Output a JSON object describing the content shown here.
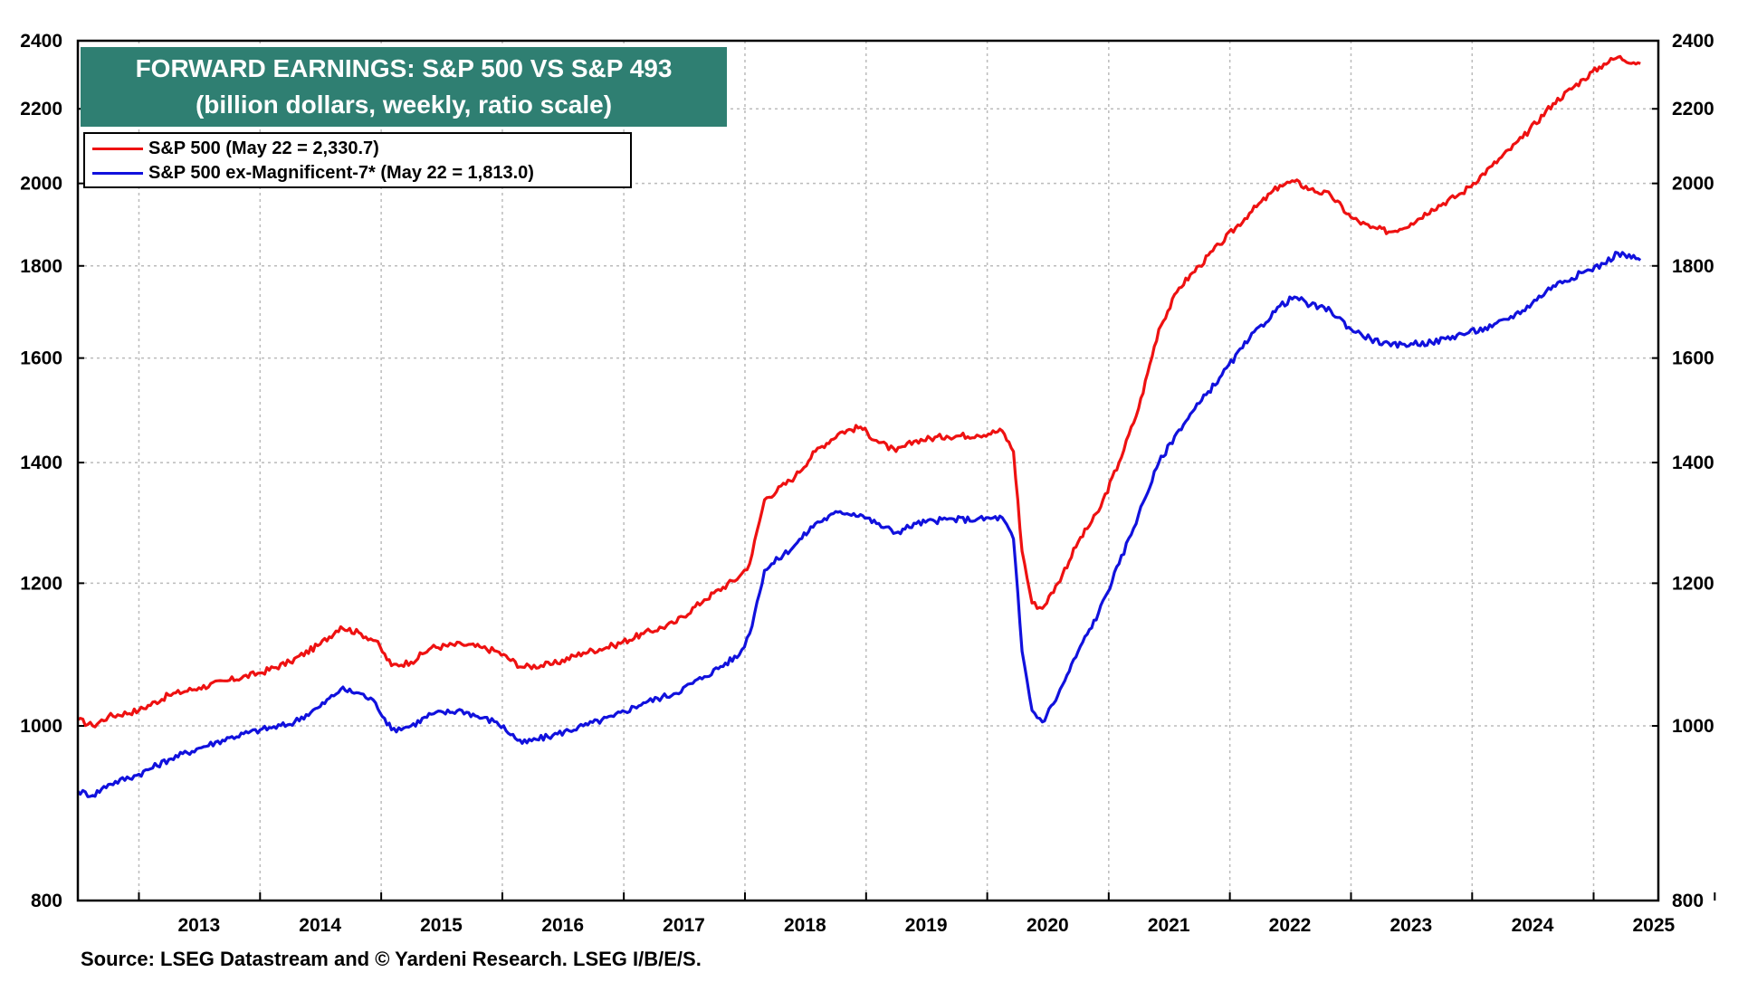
{
  "title": {
    "line1": "FORWARD EARNINGS: S&P 500 VS S&P 493",
    "line2": "(billion dollars, weekly, ratio scale)"
  },
  "legend": {
    "items": [
      {
        "label": "S&P 500 (May 22 = 2,330.7)",
        "color": "#ee1111"
      },
      {
        "label": "S&P 500 ex-Magnificent-7* (May 22 = 1,813.0)",
        "color": "#1111dd"
      }
    ]
  },
  "source": "Source: LSEG Datastream and © Yardeni Research. LSEG I/B/E/S.",
  "colors": {
    "title_bg": "#2f7f72",
    "grid": "#bbbbbb",
    "axis": "#000000"
  },
  "chart_data": {
    "type": "line",
    "y_scale": "log",
    "ylim": [
      800,
      2400
    ],
    "yticks": [
      800,
      1000,
      1200,
      1400,
      1600,
      1800,
      2000,
      2200,
      2400
    ],
    "xlim": [
      "2012-07-01",
      "2025-07-15"
    ],
    "xticks": [
      "2013",
      "2014",
      "2015",
      "2016",
      "2017",
      "2018",
      "2019",
      "2020",
      "2021",
      "2022",
      "2023",
      "2024",
      "2025"
    ],
    "grid": true,
    "legend_position": "top-left",
    "series": [
      {
        "name": "S&P 500 (May 22 = 2,330.7)",
        "color": "#ee1111",
        "points": [
          [
            "2012-07-01",
            1008
          ],
          [
            "2012-08-15",
            1000
          ],
          [
            "2012-10-01",
            1012
          ],
          [
            "2013-01-01",
            1020
          ],
          [
            "2013-04-01",
            1040
          ],
          [
            "2013-07-01",
            1050
          ],
          [
            "2013-10-01",
            1060
          ],
          [
            "2014-01-01",
            1070
          ],
          [
            "2014-04-01",
            1085
          ],
          [
            "2014-07-01",
            1110
          ],
          [
            "2014-09-01",
            1135
          ],
          [
            "2014-11-01",
            1125
          ],
          [
            "2014-12-15",
            1115
          ],
          [
            "2015-02-01",
            1080
          ],
          [
            "2015-04-01",
            1085
          ],
          [
            "2015-06-01",
            1105
          ],
          [
            "2015-09-01",
            1110
          ],
          [
            "2015-11-01",
            1105
          ],
          [
            "2015-12-15",
            1100
          ],
          [
            "2016-03-01",
            1078
          ],
          [
            "2016-06-01",
            1082
          ],
          [
            "2016-09-01",
            1098
          ],
          [
            "2016-12-01",
            1108
          ],
          [
            "2017-03-01",
            1125
          ],
          [
            "2017-06-01",
            1140
          ],
          [
            "2017-09-01",
            1175
          ],
          [
            "2017-12-15",
            1210
          ],
          [
            "2018-01-15",
            1230
          ],
          [
            "2018-03-01",
            1335
          ],
          [
            "2018-06-01",
            1375
          ],
          [
            "2018-08-01",
            1420
          ],
          [
            "2018-10-15",
            1455
          ],
          [
            "2018-12-15",
            1465
          ],
          [
            "2019-02-01",
            1440
          ],
          [
            "2019-04-01",
            1420
          ],
          [
            "2019-06-01",
            1440
          ],
          [
            "2019-09-01",
            1448
          ],
          [
            "2019-12-01",
            1450
          ],
          [
            "2020-02-15",
            1458
          ],
          [
            "2020-03-20",
            1420
          ],
          [
            "2020-04-15",
            1250
          ],
          [
            "2020-05-15",
            1170
          ],
          [
            "2020-06-15",
            1162
          ],
          [
            "2020-08-01",
            1200
          ],
          [
            "2020-10-01",
            1265
          ],
          [
            "2020-12-01",
            1315
          ],
          [
            "2021-02-01",
            1400
          ],
          [
            "2021-04-01",
            1500
          ],
          [
            "2021-06-01",
            1660
          ],
          [
            "2021-08-01",
            1750
          ],
          [
            "2021-10-01",
            1800
          ],
          [
            "2021-12-01",
            1850
          ],
          [
            "2022-03-01",
            1925
          ],
          [
            "2022-06-01",
            1995
          ],
          [
            "2022-07-15",
            2005
          ],
          [
            "2022-09-01",
            1985
          ],
          [
            "2022-11-01",
            1970
          ],
          [
            "2023-01-01",
            1915
          ],
          [
            "2023-03-01",
            1890
          ],
          [
            "2023-05-01",
            1880
          ],
          [
            "2023-07-01",
            1900
          ],
          [
            "2023-09-01",
            1935
          ],
          [
            "2023-12-01",
            1975
          ],
          [
            "2024-03-01",
            2045
          ],
          [
            "2024-06-01",
            2120
          ],
          [
            "2024-09-01",
            2215
          ],
          [
            "2024-12-01",
            2285
          ],
          [
            "2025-02-01",
            2330
          ],
          [
            "2025-03-15",
            2350
          ],
          [
            "2025-05-22",
            2330.7
          ]
        ]
      },
      {
        "name": "S&P 500 ex-Magnificent-7* (May 22 = 1,813.0)",
        "color": "#1111dd",
        "points": [
          [
            "2012-07-01",
            920
          ],
          [
            "2012-08-15",
            915
          ],
          [
            "2012-10-01",
            928
          ],
          [
            "2013-01-01",
            940
          ],
          [
            "2013-04-01",
            958
          ],
          [
            "2013-07-01",
            972
          ],
          [
            "2013-10-01",
            985
          ],
          [
            "2014-01-01",
            995
          ],
          [
            "2014-04-01",
            1002
          ],
          [
            "2014-07-01",
            1025
          ],
          [
            "2014-09-01",
            1048
          ],
          [
            "2014-11-01",
            1042
          ],
          [
            "2014-12-15",
            1030
          ],
          [
            "2015-02-01",
            995
          ],
          [
            "2015-04-01",
            1000
          ],
          [
            "2015-06-01",
            1015
          ],
          [
            "2015-09-01",
            1020
          ],
          [
            "2015-11-01",
            1010
          ],
          [
            "2015-12-15",
            1005
          ],
          [
            "2016-03-01",
            978
          ],
          [
            "2016-06-01",
            988
          ],
          [
            "2016-09-01",
            1000
          ],
          [
            "2016-12-01",
            1012
          ],
          [
            "2017-03-01",
            1030
          ],
          [
            "2017-06-01",
            1042
          ],
          [
            "2017-09-01",
            1065
          ],
          [
            "2017-12-15",
            1095
          ],
          [
            "2018-01-15",
            1125
          ],
          [
            "2018-03-01",
            1220
          ],
          [
            "2018-06-01",
            1260
          ],
          [
            "2018-08-01",
            1295
          ],
          [
            "2018-10-15",
            1315
          ],
          [
            "2018-12-15",
            1310
          ],
          [
            "2019-02-01",
            1295
          ],
          [
            "2019-04-01",
            1280
          ],
          [
            "2019-06-01",
            1295
          ],
          [
            "2019-09-01",
            1302
          ],
          [
            "2019-12-01",
            1302
          ],
          [
            "2020-02-15",
            1305
          ],
          [
            "2020-03-20",
            1270
          ],
          [
            "2020-04-15",
            1100
          ],
          [
            "2020-05-15",
            1020
          ],
          [
            "2020-06-15",
            1005
          ],
          [
            "2020-08-01",
            1040
          ],
          [
            "2020-10-01",
            1100
          ],
          [
            "2020-12-01",
            1155
          ],
          [
            "2021-02-01",
            1230
          ],
          [
            "2021-04-01",
            1310
          ],
          [
            "2021-06-01",
            1400
          ],
          [
            "2021-08-01",
            1460
          ],
          [
            "2021-10-01",
            1510
          ],
          [
            "2021-12-01",
            1560
          ],
          [
            "2022-03-01",
            1640
          ],
          [
            "2022-06-01",
            1710
          ],
          [
            "2022-07-15",
            1730
          ],
          [
            "2022-09-01",
            1712
          ],
          [
            "2022-11-01",
            1700
          ],
          [
            "2023-01-01",
            1660
          ],
          [
            "2023-03-01",
            1640
          ],
          [
            "2023-05-01",
            1625
          ],
          [
            "2023-07-01",
            1630
          ],
          [
            "2023-09-01",
            1632
          ],
          [
            "2023-12-01",
            1650
          ],
          [
            "2024-03-01",
            1665
          ],
          [
            "2024-06-01",
            1700
          ],
          [
            "2024-09-01",
            1755
          ],
          [
            "2024-12-01",
            1785
          ],
          [
            "2025-02-01",
            1805
          ],
          [
            "2025-03-15",
            1830
          ],
          [
            "2025-05-22",
            1813.0
          ]
        ]
      }
    ]
  }
}
